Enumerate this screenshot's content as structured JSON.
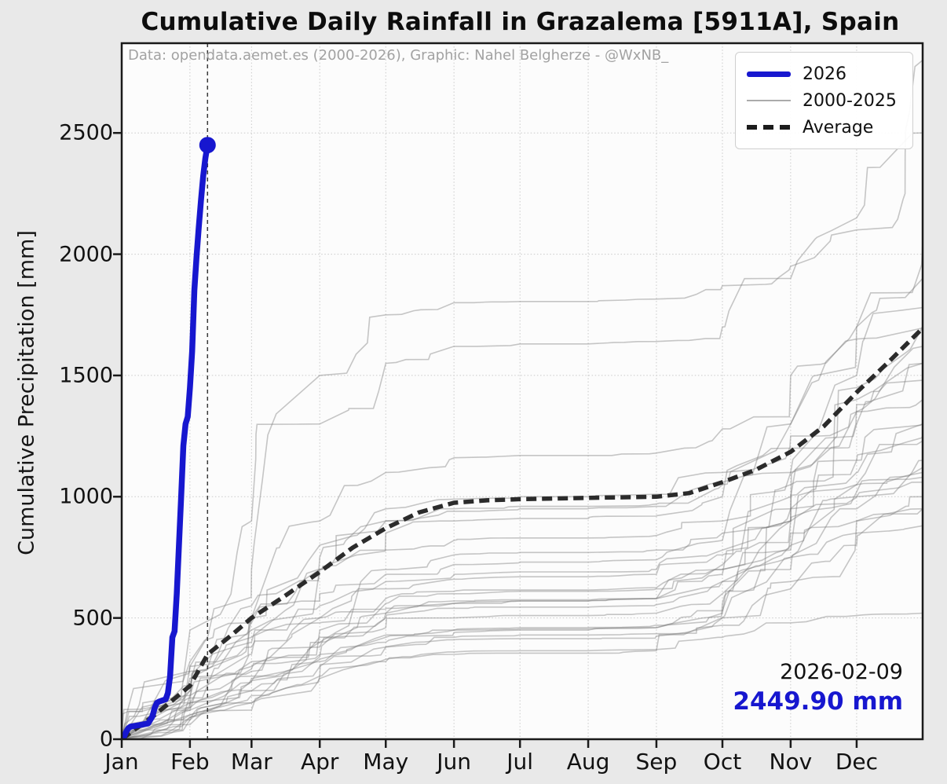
{
  "title": "Cumulative Daily Rainfall in Grazalema [5911A], Spain",
  "credit": "Data: opendata.aemet.es (2000-2026), Graphic: Nahel Belgherze - @WxNB_",
  "legend": {
    "items": [
      {
        "label": "2026",
        "style": "blue-thick"
      },
      {
        "label": "2000-2025",
        "style": "gray-thin"
      },
      {
        "label": "Average",
        "style": "black-dashed"
      }
    ]
  },
  "annotation": {
    "date": "2026-02-09",
    "value": "2449.90 mm"
  },
  "colors": {
    "highlight": "#1717cf",
    "years_gray": "#7a7a7a",
    "average": "#2b2b2b",
    "figure_bg": "#e9e9e9",
    "plot_bg": "#fcfcfc",
    "grid": "#c9c9c9",
    "frame": "#1a1a1a",
    "credit_text": "#a2a2a2",
    "event_line": "#3a3a3a"
  },
  "chart_data": {
    "type": "line",
    "title": "Cumulative Daily Rainfall in Grazalema [5911A], Spain",
    "xlabel": "",
    "ylabel": "Cumulative Precipitation [mm]",
    "x_tick_labels": [
      "Jan",
      "Feb",
      "Mar",
      "Apr",
      "May",
      "Jun",
      "Jul",
      "Aug",
      "Sep",
      "Oct",
      "Nov",
      "Dec"
    ],
    "month_start_days": [
      0,
      31,
      59,
      90,
      120,
      151,
      181,
      212,
      243,
      273,
      304,
      334
    ],
    "y_ticks": [
      0,
      500,
      1000,
      1500,
      2000,
      2500
    ],
    "xlim_days": [
      0,
      364
    ],
    "ylim": [
      0,
      2870
    ],
    "grid": true,
    "legend_position": "upper right",
    "event_marker": {
      "day": 39,
      "date": "2026-02-09",
      "value_mm": 2449.9
    },
    "series_2026": {
      "name": "2026",
      "days": [
        0,
        1,
        2,
        3,
        4,
        8,
        12,
        13,
        14,
        15,
        16,
        17,
        20,
        21,
        22,
        23,
        24,
        25,
        26,
        27,
        28,
        29,
        30,
        31,
        32,
        33,
        34,
        35,
        36,
        37,
        38,
        39
      ],
      "values": [
        0,
        10,
        30,
        45,
        52,
        58,
        65,
        80,
        95,
        130,
        150,
        155,
        165,
        190,
        260,
        420,
        445,
        600,
        800,
        1000,
        1210,
        1300,
        1330,
        1450,
        1600,
        1850,
        1990,
        2110,
        2220,
        2320,
        2395,
        2449.9
      ]
    },
    "series_average": {
      "name": "Average",
      "days": [
        0,
        15,
        31,
        39,
        50,
        59,
        74,
        90,
        105,
        120,
        135,
        151,
        166,
        181,
        212,
        243,
        258,
        273,
        288,
        304,
        319,
        334,
        349,
        364
      ],
      "values": [
        0,
        100,
        220,
        350,
        430,
        500,
        590,
        690,
        790,
        870,
        935,
        975,
        985,
        990,
        995,
        1000,
        1015,
        1060,
        1110,
        1185,
        1290,
        1430,
        1560,
        1695
      ]
    },
    "series_years": {
      "name": "2000-2025",
      "days": [
        0,
        31,
        59,
        90,
        120,
        151,
        181,
        212,
        243,
        273,
        304,
        334,
        364
      ],
      "years": [
        {
          "year": 2000,
          "values": [
            0,
            60,
            120,
            260,
            380,
            420,
            430,
            430,
            435,
            470,
            620,
            800,
            950
          ]
        },
        {
          "year": 2001,
          "values": [
            0,
            150,
            290,
            350,
            430,
            450,
            455,
            455,
            460,
            520,
            700,
            950,
            1120
          ]
        },
        {
          "year": 2002,
          "values": [
            0,
            90,
            150,
            320,
            400,
            440,
            450,
            450,
            460,
            530,
            780,
            1050,
            1230
          ]
        },
        {
          "year": 2003,
          "values": [
            0,
            320,
            480,
            600,
            680,
            720,
            730,
            730,
            740,
            820,
            1100,
            1450,
            1700
          ]
        },
        {
          "year": 2004,
          "values": [
            0,
            180,
            350,
            500,
            620,
            660,
            670,
            670,
            680,
            760,
            950,
            1150,
            1300
          ]
        },
        {
          "year": 2005,
          "values": [
            0,
            100,
            180,
            260,
            330,
            360,
            365,
            365,
            370,
            420,
            480,
            510,
            520
          ]
        },
        {
          "year": 2006,
          "values": [
            0,
            130,
            260,
            420,
            520,
            560,
            570,
            570,
            580,
            680,
            900,
            1020,
            1080
          ]
        },
        {
          "year": 2007,
          "values": [
            0,
            80,
            200,
            340,
            460,
            500,
            510,
            510,
            520,
            600,
            750,
            850,
            880
          ]
        },
        {
          "year": 2008,
          "values": [
            0,
            120,
            240,
            400,
            520,
            560,
            570,
            570,
            580,
            700,
            900,
            1000,
            1060
          ]
        },
        {
          "year": 2009,
          "values": [
            0,
            300,
            550,
            700,
            780,
            820,
            830,
            830,
            840,
            900,
            1100,
            1500,
            1780
          ]
        },
        {
          "year": 2010,
          "values": [
            0,
            450,
            900,
            1300,
            1550,
            1620,
            1630,
            1630,
            1640,
            1700,
            1900,
            2150,
            2500
          ]
        },
        {
          "year": 2011,
          "values": [
            0,
            280,
            500,
            700,
            900,
            950,
            960,
            960,
            970,
            1050,
            1300,
            1700,
            1900
          ]
        },
        {
          "year": 2012,
          "values": [
            0,
            150,
            250,
            330,
            420,
            450,
            460,
            460,
            470,
            560,
            900,
            1300,
            1550
          ]
        },
        {
          "year": 2013,
          "values": [
            0,
            200,
            500,
            800,
            950,
            990,
            1000,
            1000,
            1010,
            1100,
            1250,
            1350,
            1400
          ]
        },
        {
          "year": 2014,
          "values": [
            0,
            180,
            320,
            450,
            560,
            600,
            610,
            610,
            620,
            720,
            1000,
            1350,
            1620
          ]
        },
        {
          "year": 2015,
          "values": [
            0,
            220,
            380,
            480,
            540,
            570,
            575,
            575,
            580,
            650,
            800,
            900,
            950
          ]
        },
        {
          "year": 2016,
          "values": [
            0,
            130,
            240,
            400,
            700,
            760,
            770,
            770,
            780,
            850,
            1050,
            1400,
            1480
          ]
        },
        {
          "year": 2017,
          "values": [
            0,
            90,
            200,
            300,
            380,
            410,
            415,
            415,
            425,
            500,
            650,
            900,
            1000
          ]
        },
        {
          "year": 2018,
          "values": [
            0,
            120,
            500,
            900,
            1100,
            1160,
            1170,
            1170,
            1180,
            1280,
            1500,
            1650,
            1700
          ]
        },
        {
          "year": 2019,
          "values": [
            0,
            80,
            150,
            250,
            320,
            350,
            355,
            355,
            365,
            500,
            750,
            1000,
            1150
          ]
        },
        {
          "year": 2020,
          "values": [
            0,
            250,
            420,
            700,
            850,
            900,
            910,
            910,
            920,
            1000,
            1200,
            1380,
            1550
          ]
        },
        {
          "year": 2021,
          "values": [
            0,
            200,
            400,
            550,
            650,
            680,
            690,
            690,
            700,
            780,
            950,
            1150,
            1250
          ]
        },
        {
          "year": 2022,
          "values": [
            0,
            100,
            300,
            500,
            580,
            610,
            615,
            615,
            625,
            700,
            850,
            1050,
            1100
          ]
        },
        {
          "year": 2023,
          "values": [
            0,
            150,
            280,
            380,
            500,
            540,
            545,
            545,
            555,
            650,
            900,
            1100,
            1300
          ]
        },
        {
          "year": 2024,
          "values": [
            0,
            170,
            450,
            750,
            900,
            940,
            950,
            950,
            960,
            1060,
            1300,
            1700,
            2050
          ]
        },
        {
          "year": 2025,
          "days": [
            0,
            31,
            59,
            90,
            120,
            151,
            181,
            212,
            243,
            273,
            304,
            334,
            356,
            364
          ],
          "values": [
            0,
            300,
            700,
            1500,
            1750,
            1800,
            1805,
            1805,
            1815,
            1870,
            1950,
            2100,
            2250,
            2800
          ]
        }
      ]
    }
  }
}
